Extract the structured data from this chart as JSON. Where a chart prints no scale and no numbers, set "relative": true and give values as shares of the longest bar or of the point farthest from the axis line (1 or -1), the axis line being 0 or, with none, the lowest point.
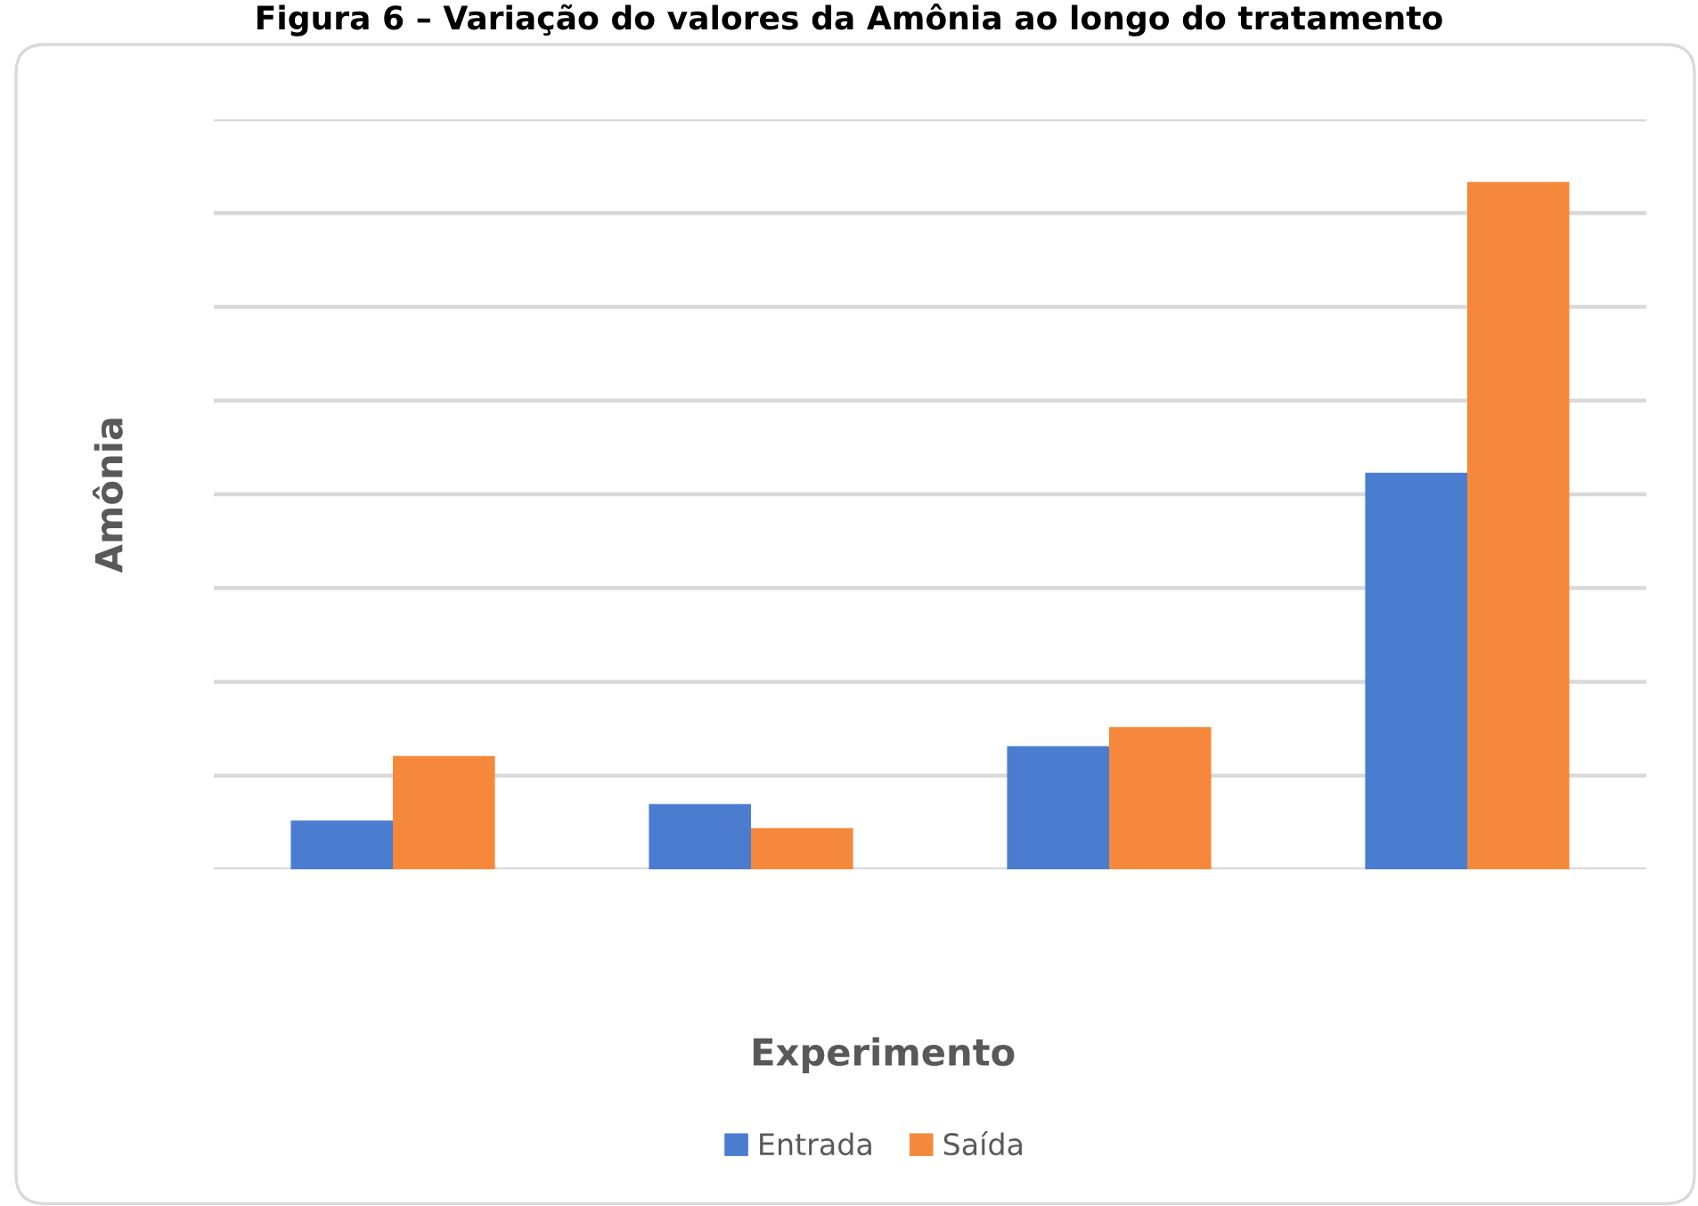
{
  "chart_data": {
    "type": "bar",
    "title": "Figura 6 – Variação do valores da Amônia ao longo do tratamento",
    "xlabel": "Experimento",
    "ylabel": "Amônia",
    "categories": [
      null,
      null,
      null,
      null
    ],
    "series": [
      {
        "name": "Entrada",
        "color": "#4a7cd0",
        "values": [
          0.071,
          0.095,
          0.179,
          0.577
        ]
      },
      {
        "name": "Saída",
        "color": "#f5883a",
        "values": [
          0.165,
          0.06,
          0.207,
          1.0
        ]
      }
    ],
    "relative": true,
    "grid": "y",
    "legend": "bottom"
  }
}
